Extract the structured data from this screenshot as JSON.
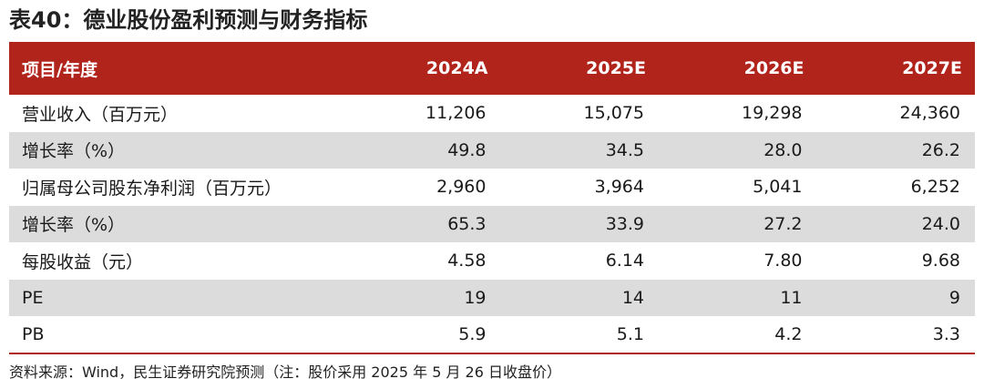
{
  "title": "表40：德业股份盈利预测与财务指标",
  "table": {
    "header": [
      "项目/年度",
      "2024A",
      "2025E",
      "2026E",
      "2027E"
    ],
    "rows": [
      {
        "label": "营业收入（百万元）",
        "values": [
          "11,206",
          "15,075",
          "19,298",
          "24,360"
        ]
      },
      {
        "label": "增长率（%）",
        "values": [
          "49.8",
          "34.5",
          "28.0",
          "26.2"
        ]
      },
      {
        "label": "归属母公司股东净利润（百万元）",
        "values": [
          "2,960",
          "3,964",
          "5,041",
          "6,252"
        ]
      },
      {
        "label": "增长率（%）",
        "values": [
          "65.3",
          "33.9",
          "27.2",
          "24.0"
        ]
      },
      {
        "label": "每股收益（元）",
        "values": [
          "4.58",
          "6.14",
          "7.80",
          "9.68"
        ]
      },
      {
        "label": "PE",
        "values": [
          "19",
          "14",
          "11",
          "9"
        ]
      },
      {
        "label": "PB",
        "values": [
          "5.9",
          "5.1",
          "4.2",
          "3.3"
        ]
      }
    ]
  },
  "source": "资料来源：Wind，民生证券研究院预测（注：股价采用 2025 年 5 月 26 日收盘价）",
  "colors": {
    "header_bg": "#b1241b",
    "shaded_row": "#dcdcdc"
  }
}
